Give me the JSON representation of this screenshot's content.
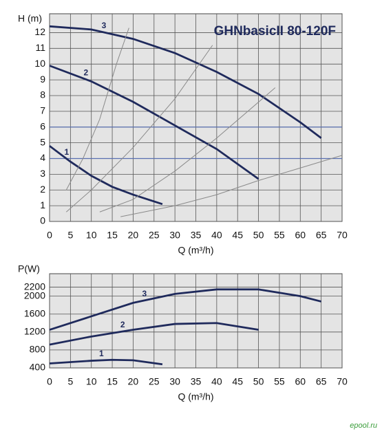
{
  "chart_data": [
    {
      "type": "line",
      "title": "GHNbasicII 80-120F",
      "y_label": "H (m)",
      "x_label": "Q (m³/h)",
      "xlim": [
        0,
        70
      ],
      "xticks": [
        0,
        5,
        10,
        15,
        20,
        25,
        30,
        35,
        40,
        45,
        50,
        55,
        60,
        65,
        70
      ],
      "ylim": [
        0,
        13.2
      ],
      "yticks": [
        0,
        1,
        2,
        3,
        4,
        5,
        6,
        7,
        8,
        9,
        10,
        11,
        12
      ],
      "grid": true,
      "highlight_lines": {
        "color": "#5a6fb0",
        "values": [
          4,
          6
        ]
      },
      "series": [
        {
          "name": "3",
          "color": "#1f2a5c",
          "x": [
            0,
            10,
            20,
            30,
            40,
            50,
            60,
            65
          ],
          "values": [
            12.4,
            12.2,
            11.6,
            10.7,
            9.5,
            8.1,
            6.3,
            5.3
          ]
        },
        {
          "name": "2",
          "color": "#1f2a5c",
          "x": [
            0,
            10,
            20,
            30,
            40,
            50
          ],
          "values": [
            9.9,
            8.9,
            7.6,
            6.1,
            4.6,
            2.7
          ]
        },
        {
          "name": "1",
          "color": "#1f2a5c",
          "x": [
            0,
            5,
            10,
            15,
            20,
            27
          ],
          "values": [
            4.8,
            3.8,
            2.9,
            2.2,
            1.7,
            1.1
          ]
        },
        {
          "color": "#8a8a8a",
          "x": [
            4,
            8,
            12,
            16,
            19
          ],
          "values": [
            2,
            4,
            6.5,
            10,
            12.3
          ]
        },
        {
          "color": "#8a8a8a",
          "x": [
            4,
            10,
            20,
            30,
            39
          ],
          "values": [
            0.6,
            2,
            4.7,
            7.8,
            11.2
          ]
        },
        {
          "color": "#8a8a8a",
          "x": [
            12,
            20,
            30,
            40,
            54
          ],
          "values": [
            0.6,
            1.4,
            3.2,
            5.3,
            8.5
          ]
        },
        {
          "color": "#8a8a8a",
          "x": [
            17,
            30,
            40,
            50,
            60,
            70
          ],
          "values": [
            0.3,
            1,
            1.7,
            2.6,
            3.4,
            4.2
          ]
        }
      ]
    },
    {
      "type": "line",
      "y_label": "P(W)",
      "x_label": "Q (m³/h)",
      "xlim": [
        0,
        70
      ],
      "xticks": [
        0,
        5,
        10,
        15,
        20,
        25,
        30,
        35,
        40,
        45,
        50,
        55,
        60,
        65,
        70
      ],
      "ylim": [
        400,
        2500
      ],
      "yticks": [
        400,
        800,
        1200,
        1600,
        2000,
        2200
      ],
      "grid": true,
      "series": [
        {
          "name": "3",
          "color": "#1f2a5c",
          "x": [
            0,
            10,
            20,
            30,
            40,
            50,
            60,
            65
          ],
          "values": [
            1250,
            1550,
            1850,
            2050,
            2150,
            2150,
            2000,
            1880
          ]
        },
        {
          "name": "2",
          "color": "#1f2a5c",
          "x": [
            0,
            10,
            20,
            30,
            40,
            50
          ],
          "values": [
            920,
            1100,
            1250,
            1380,
            1400,
            1250
          ]
        },
        {
          "name": "1",
          "color": "#1f2a5c",
          "x": [
            0,
            10,
            15,
            20,
            27
          ],
          "values": [
            500,
            560,
            580,
            570,
            480
          ]
        }
      ]
    }
  ],
  "logo": "epool.ru"
}
